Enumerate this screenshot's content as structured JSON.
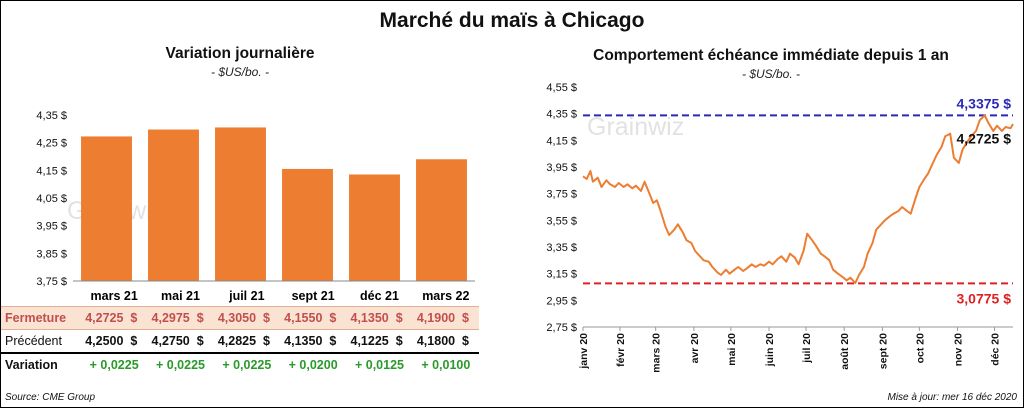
{
  "title": "Marché du maïs à Chicago",
  "source": "Source: CME Group",
  "updated": "Mise à jour: mer 16 déc 2020",
  "watermark": "Grainwiz",
  "left": {
    "title": "Variation  journalière",
    "unit": "- $US/bo. -",
    "row_labels": {
      "close": "Fermeture",
      "prev": "Précédent",
      "change": "Variation"
    },
    "months": [
      "mars 21",
      "mai 21",
      "juil 21",
      "sept 21",
      "déc 21",
      "mars 22"
    ],
    "close": [
      "4,2725",
      "4,2975",
      "4,3050",
      "4,1550",
      "4,1350",
      "4,1900"
    ],
    "prev": [
      "4,2500",
      "4,2750",
      "4,2825",
      "4,1350",
      "4,1225",
      "4,1800"
    ],
    "change": [
      "+ 0,0225",
      "+ 0,0225",
      "+ 0,0225",
      "+ 0,0200",
      "+ 0,0125",
      "+ 0,0100"
    ],
    "currency": "$"
  },
  "right": {
    "title": "Comportement  échéance immédiate  depuis 1 an",
    "unit": "- $US/bo. -",
    "annotations": {
      "high": "4,3375 $",
      "last": "4,2725 $",
      "low": "3,0775 $"
    }
  },
  "chart_data": [
    {
      "type": "bar",
      "categories": [
        "mars 21",
        "mai 21",
        "juil 21",
        "sept 21",
        "déc 21",
        "mars 22"
      ],
      "values": [
        4.2725,
        4.2975,
        4.305,
        4.155,
        4.135,
        4.19
      ],
      "ylim": [
        3.75,
        4.35
      ],
      "yticks": [
        3.75,
        3.85,
        3.95,
        4.05,
        4.15,
        4.25,
        4.35
      ],
      "ytick_labels": [
        "3,75 $",
        "3,85 $",
        "3,95 $",
        "4,05 $",
        "4,15 $",
        "4,25 $",
        "4,35 $"
      ],
      "color": "#ed7d31",
      "grid": false
    },
    {
      "type": "line",
      "color": "#ed7d31",
      "x_start": "2020-01-02",
      "x_end": "2020-12-16",
      "xtick_labels": [
        "janv 20",
        "févr 20",
        "mars 20",
        "avr 20",
        "mai 20",
        "juin 20",
        "juil 20",
        "août 20",
        "sept 20",
        "oct 20",
        "nov 20",
        "déc 20"
      ],
      "xtick_dates": [
        "2020-01-02",
        "2020-02-01",
        "2020-03-01",
        "2020-04-01",
        "2020-05-01",
        "2020-06-01",
        "2020-07-01",
        "2020-08-01",
        "2020-09-01",
        "2020-10-01",
        "2020-11-01",
        "2020-12-01"
      ],
      "ylim": [
        2.75,
        4.55
      ],
      "yticks": [
        2.75,
        2.95,
        3.15,
        3.35,
        3.55,
        3.75,
        3.95,
        4.15,
        4.35,
        4.55
      ],
      "ytick_labels": [
        "2,75 $",
        "2,95 $",
        "3,15 $",
        "3,35 $",
        "3,55 $",
        "3,75 $",
        "3,95 $",
        "4,15 $",
        "4,35 $",
        "4,55 $"
      ],
      "hlines": [
        {
          "value": 4.3375,
          "color": "#2a2ab8"
        },
        {
          "value": 3.0775,
          "color": "#e02020"
        }
      ],
      "points": [
        [
          "2020-01-02",
          3.88
        ],
        [
          "2020-01-05",
          3.86
        ],
        [
          "2020-01-08",
          3.92
        ],
        [
          "2020-01-10",
          3.84
        ],
        [
          "2020-01-14",
          3.87
        ],
        [
          "2020-01-17",
          3.8
        ],
        [
          "2020-01-21",
          3.85
        ],
        [
          "2020-01-24",
          3.82
        ],
        [
          "2020-01-28",
          3.8
        ],
        [
          "2020-01-31",
          3.83
        ],
        [
          "2020-02-04",
          3.8
        ],
        [
          "2020-02-07",
          3.82
        ],
        [
          "2020-02-11",
          3.79
        ],
        [
          "2020-02-14",
          3.81
        ],
        [
          "2020-02-18",
          3.77
        ],
        [
          "2020-02-21",
          3.84
        ],
        [
          "2020-02-25",
          3.75
        ],
        [
          "2020-02-28",
          3.68
        ],
        [
          "2020-03-02",
          3.7
        ],
        [
          "2020-03-05",
          3.62
        ],
        [
          "2020-03-09",
          3.5
        ],
        [
          "2020-03-12",
          3.44
        ],
        [
          "2020-03-16",
          3.48
        ],
        [
          "2020-03-19",
          3.52
        ],
        [
          "2020-03-23",
          3.46
        ],
        [
          "2020-03-26",
          3.4
        ],
        [
          "2020-03-30",
          3.38
        ],
        [
          "2020-04-02",
          3.32
        ],
        [
          "2020-04-06",
          3.28
        ],
        [
          "2020-04-09",
          3.25
        ],
        [
          "2020-04-13",
          3.24
        ],
        [
          "2020-04-16",
          3.2
        ],
        [
          "2020-04-20",
          3.16
        ],
        [
          "2020-04-23",
          3.14
        ],
        [
          "2020-04-27",
          3.18
        ],
        [
          "2020-04-30",
          3.15
        ],
        [
          "2020-05-04",
          3.18
        ],
        [
          "2020-05-07",
          3.2
        ],
        [
          "2020-05-11",
          3.17
        ],
        [
          "2020-05-14",
          3.19
        ],
        [
          "2020-05-18",
          3.22
        ],
        [
          "2020-05-21",
          3.2
        ],
        [
          "2020-05-25",
          3.22
        ],
        [
          "2020-05-28",
          3.21
        ],
        [
          "2020-06-01",
          3.24
        ],
        [
          "2020-06-04",
          3.22
        ],
        [
          "2020-06-08",
          3.26
        ],
        [
          "2020-06-11",
          3.28
        ],
        [
          "2020-06-15",
          3.24
        ],
        [
          "2020-06-18",
          3.3
        ],
        [
          "2020-06-22",
          3.27
        ],
        [
          "2020-06-25",
          3.22
        ],
        [
          "2020-06-29",
          3.32
        ],
        [
          "2020-07-02",
          3.45
        ],
        [
          "2020-07-06",
          3.4
        ],
        [
          "2020-07-09",
          3.36
        ],
        [
          "2020-07-13",
          3.3
        ],
        [
          "2020-07-16",
          3.28
        ],
        [
          "2020-07-20",
          3.25
        ],
        [
          "2020-07-23",
          3.18
        ],
        [
          "2020-07-27",
          3.15
        ],
        [
          "2020-07-30",
          3.13
        ],
        [
          "2020-08-03",
          3.1
        ],
        [
          "2020-08-06",
          3.12
        ],
        [
          "2020-08-10",
          3.08
        ],
        [
          "2020-08-13",
          3.14
        ],
        [
          "2020-08-17",
          3.2
        ],
        [
          "2020-08-20",
          3.3
        ],
        [
          "2020-08-24",
          3.38
        ],
        [
          "2020-08-27",
          3.48
        ],
        [
          "2020-08-31",
          3.52
        ],
        [
          "2020-09-03",
          3.55
        ],
        [
          "2020-09-07",
          3.58
        ],
        [
          "2020-09-10",
          3.6
        ],
        [
          "2020-09-14",
          3.62
        ],
        [
          "2020-09-17",
          3.65
        ],
        [
          "2020-09-21",
          3.62
        ],
        [
          "2020-09-24",
          3.6
        ],
        [
          "2020-09-28",
          3.72
        ],
        [
          "2020-10-01",
          3.8
        ],
        [
          "2020-10-05",
          3.86
        ],
        [
          "2020-10-08",
          3.9
        ],
        [
          "2020-10-12",
          3.98
        ],
        [
          "2020-10-15",
          4.04
        ],
        [
          "2020-10-19",
          4.1
        ],
        [
          "2020-10-22",
          4.18
        ],
        [
          "2020-10-26",
          4.2
        ],
        [
          "2020-10-29",
          4.02
        ],
        [
          "2020-11-02",
          3.98
        ],
        [
          "2020-11-05",
          4.08
        ],
        [
          "2020-11-09",
          4.14
        ],
        [
          "2020-11-12",
          4.18
        ],
        [
          "2020-11-16",
          4.22
        ],
        [
          "2020-11-19",
          4.3
        ],
        [
          "2020-11-23",
          4.3375
        ],
        [
          "2020-11-26",
          4.28
        ],
        [
          "2020-11-30",
          4.22
        ],
        [
          "2020-12-03",
          4.26
        ],
        [
          "2020-12-07",
          4.22
        ],
        [
          "2020-12-10",
          4.25
        ],
        [
          "2020-12-14",
          4.24
        ],
        [
          "2020-12-16",
          4.2725
        ]
      ]
    }
  ]
}
